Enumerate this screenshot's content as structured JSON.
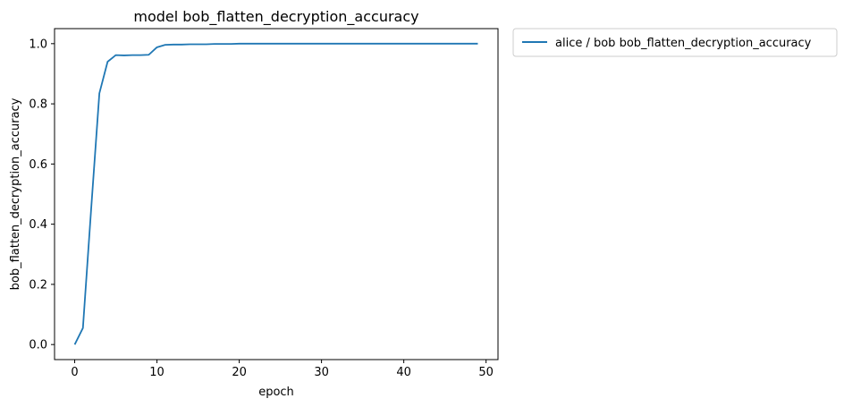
{
  "chart_data": {
    "type": "line",
    "title": "model bob_flatten_decryption_accuracy",
    "xlabel": "epoch",
    "ylabel": "bob_flatten_decryption_accuracy",
    "xlim": [
      -2.45,
      51.45
    ],
    "ylim": [
      -0.05,
      1.05
    ],
    "xticks": [
      0,
      10,
      20,
      30,
      40,
      50
    ],
    "xtick_labels": [
      "0",
      "10",
      "20",
      "30",
      "40",
      "50"
    ],
    "yticks": [
      0.0,
      0.2,
      0.4,
      0.6,
      0.8,
      1.0
    ],
    "ytick_labels": [
      "0.0",
      "0.2",
      "0.4",
      "0.6",
      "0.8",
      "1.0"
    ],
    "grid": false,
    "legend_position": "outside-upper-right",
    "series": [
      {
        "name": "alice / bob bob_flatten_decryption_accuracy",
        "color": "#1f77b4",
        "x": [
          0,
          1,
          2,
          3,
          4,
          5,
          6,
          7,
          8,
          9,
          10,
          11,
          12,
          13,
          14,
          15,
          16,
          17,
          18,
          19,
          20,
          21,
          22,
          23,
          24,
          25,
          26,
          27,
          28,
          29,
          30,
          31,
          32,
          33,
          34,
          35,
          36,
          37,
          38,
          39,
          40,
          41,
          42,
          43,
          44,
          45,
          46,
          47,
          48,
          49
        ],
        "y": [
          0.0,
          0.055,
          0.45,
          0.835,
          0.94,
          0.962,
          0.961,
          0.962,
          0.962,
          0.963,
          0.988,
          0.996,
          0.997,
          0.997,
          0.998,
          0.998,
          0.998,
          0.999,
          0.999,
          0.999,
          1.0,
          1.0,
          1.0,
          1.0,
          1.0,
          1.0,
          1.0,
          1.0,
          1.0,
          1.0,
          1.0,
          1.0,
          1.0,
          1.0,
          1.0,
          1.0,
          1.0,
          1.0,
          1.0,
          1.0,
          1.0,
          1.0,
          1.0,
          1.0,
          1.0,
          1.0,
          1.0,
          1.0,
          1.0,
          1.0
        ]
      }
    ]
  }
}
